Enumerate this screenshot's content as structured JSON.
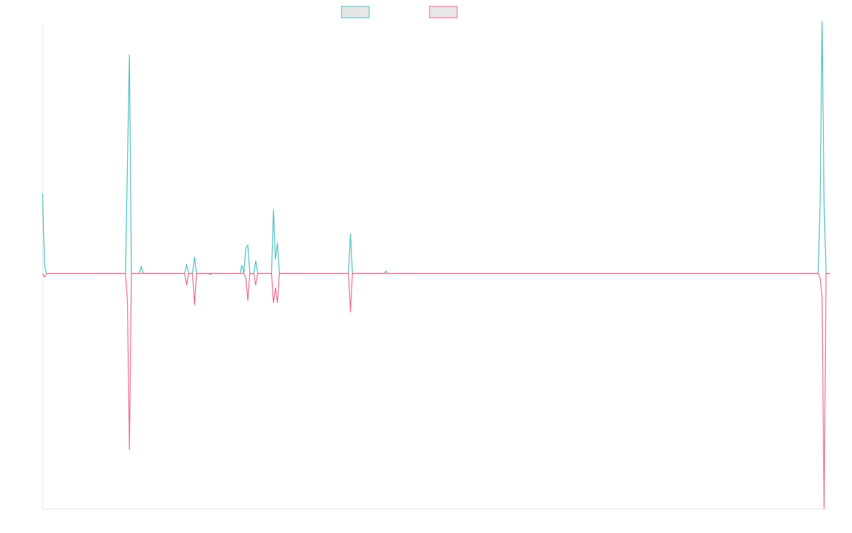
{
  "chart_data": {
    "type": "line",
    "title": "",
    "xlabel": "",
    "ylabel": "",
    "grid": false,
    "legend_position": "top-center",
    "x_count": 400,
    "ylim": [
      -1.0,
      1.05
    ],
    "colors": {
      "series_1": "#4bbfbf",
      "series_2": "#f06a8a",
      "axis": "#e3e3e3",
      "legend_fill": "#e6e6e6"
    },
    "series": [
      {
        "name": "",
        "points": [
          [
            0,
            0.34
          ],
          [
            1,
            0.03
          ],
          [
            2,
            0.0
          ],
          [
            42,
            0.0
          ],
          [
            44,
            0.93
          ],
          [
            45,
            0.0
          ],
          [
            49,
            0.0
          ],
          [
            50,
            0.03
          ],
          [
            51,
            0.0
          ],
          [
            72,
            0.0
          ],
          [
            73,
            0.04
          ],
          [
            74,
            0.0
          ],
          [
            76,
            0.0
          ],
          [
            77,
            0.07
          ],
          [
            78,
            0.0
          ],
          [
            100,
            0.0
          ],
          [
            101,
            0.035
          ],
          [
            102,
            0.0
          ],
          [
            103,
            0.11
          ],
          [
            104,
            0.12
          ],
          [
            105,
            0.0
          ],
          [
            107,
            0.0
          ],
          [
            108,
            0.055
          ],
          [
            109,
            0.0
          ],
          [
            116,
            0.0
          ],
          [
            117,
            0.27
          ],
          [
            118,
            0.06
          ],
          [
            119,
            0.13
          ],
          [
            120,
            0.0
          ],
          [
            155,
            0.0
          ],
          [
            156,
            0.17
          ],
          [
            157,
            0.0
          ],
          [
            173,
            0.0
          ],
          [
            174,
            0.01
          ],
          [
            175,
            0.0
          ],
          [
            393,
            0.0
          ],
          [
            394,
            0.3
          ],
          [
            395,
            1.07
          ],
          [
            396,
            0.3
          ],
          [
            397,
            0.0
          ],
          [
            399,
            0.0
          ]
        ]
      },
      {
        "name": "",
        "points": [
          [
            0,
            0.0
          ],
          [
            1,
            -0.015
          ],
          [
            2,
            0.0
          ],
          [
            42,
            0.0
          ],
          [
            43,
            -0.12
          ],
          [
            44,
            -0.75
          ],
          [
            45,
            0.0
          ],
          [
            72,
            0.0
          ],
          [
            73,
            -0.05
          ],
          [
            74,
            0.0
          ],
          [
            76,
            0.0
          ],
          [
            77,
            -0.135
          ],
          [
            78,
            0.0
          ],
          [
            84,
            0.0
          ],
          [
            85,
            -0.005
          ],
          [
            86,
            0.0
          ],
          [
            102,
            0.0
          ],
          [
            103,
            -0.02
          ],
          [
            104,
            -0.115
          ],
          [
            105,
            0.0
          ],
          [
            107,
            0.0
          ],
          [
            108,
            -0.05
          ],
          [
            109,
            0.0
          ],
          [
            116,
            0.0
          ],
          [
            117,
            -0.125
          ],
          [
            118,
            -0.06
          ],
          [
            119,
            -0.125
          ],
          [
            120,
            0.0
          ],
          [
            155,
            0.0
          ],
          [
            156,
            -0.165
          ],
          [
            157,
            0.0
          ],
          [
            393,
            0.0
          ],
          [
            394,
            -0.02
          ],
          [
            395,
            -0.1
          ],
          [
            396,
            -1.0
          ],
          [
            397,
            0.0
          ],
          [
            399,
            0.0
          ]
        ]
      }
    ]
  }
}
